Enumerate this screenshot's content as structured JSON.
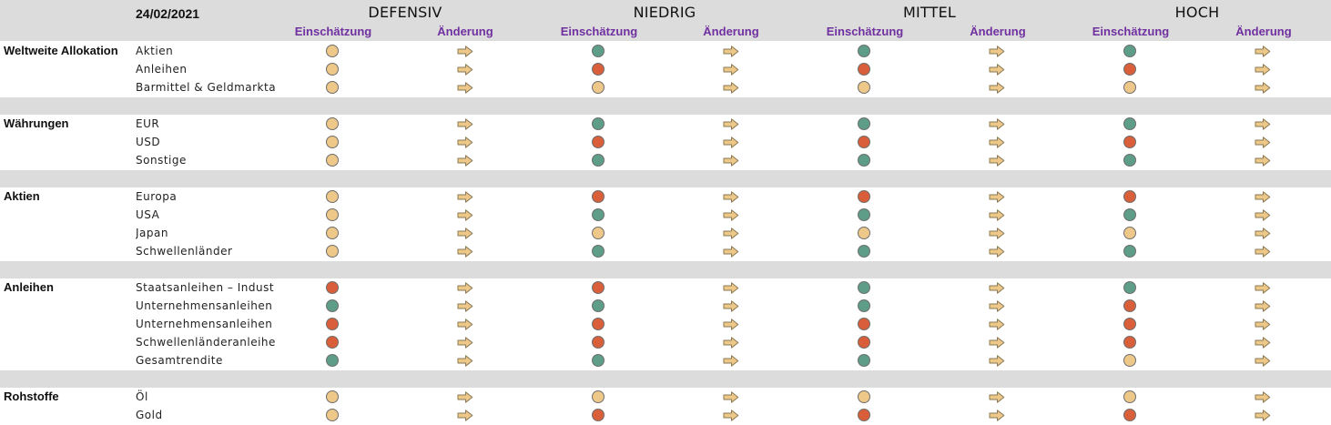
{
  "date": "24/02/2021",
  "profiles": [
    "DEFENSIV",
    "NIEDRIG",
    "MITTEL",
    "HOCH"
  ],
  "subheaders": {
    "rating": "Einschätzung",
    "change": "Änderung"
  },
  "colors": {
    "green": "#5e9e88",
    "red": "#d95f3a",
    "yellow": "#eec889",
    "arrow": "#eec889",
    "band": "#dcdcdc",
    "subheader": "#7030a0"
  },
  "change_icon": "arrow-right-icon",
  "groups": [
    {
      "category": "Weltweite Allokation",
      "rows": [
        {
          "asset": "Aktien",
          "ratings": [
            "yellow",
            "green",
            "green",
            "green"
          ]
        },
        {
          "asset": "Anleihen",
          "ratings": [
            "yellow",
            "red",
            "red",
            "red"
          ]
        },
        {
          "asset": "Barmittel & Geldmarkta",
          "ratings": [
            "yellow",
            "yellow",
            "yellow",
            "yellow"
          ]
        }
      ]
    },
    {
      "category": "Währungen",
      "rows": [
        {
          "asset": "EUR",
          "ratings": [
            "yellow",
            "green",
            "green",
            "green"
          ]
        },
        {
          "asset": "USD",
          "ratings": [
            "yellow",
            "red",
            "red",
            "red"
          ]
        },
        {
          "asset": "Sonstige",
          "ratings": [
            "yellow",
            "green",
            "green",
            "green"
          ]
        }
      ]
    },
    {
      "category": "Aktien",
      "rows": [
        {
          "asset": "Europa",
          "ratings": [
            "yellow",
            "red",
            "red",
            "red"
          ]
        },
        {
          "asset": "USA",
          "ratings": [
            "yellow",
            "green",
            "green",
            "green"
          ]
        },
        {
          "asset": "Japan",
          "ratings": [
            "yellow",
            "yellow",
            "yellow",
            "yellow"
          ]
        },
        {
          "asset": "Schwellenländer",
          "ratings": [
            "yellow",
            "green",
            "green",
            "green"
          ]
        }
      ]
    },
    {
      "category": "Anleihen",
      "rows": [
        {
          "asset": "Staatsanleihen – Indust",
          "ratings": [
            "red",
            "red",
            "green",
            "green"
          ]
        },
        {
          "asset": "Unternehmensanleihen",
          "ratings": [
            "green",
            "green",
            "green",
            "red"
          ]
        },
        {
          "asset": "Unternehmensanleihen",
          "ratings": [
            "red",
            "red",
            "red",
            "red"
          ]
        },
        {
          "asset": "Schwellenländeranleihe",
          "ratings": [
            "red",
            "red",
            "red",
            "red"
          ]
        },
        {
          "asset": "Gesamtrendite",
          "ratings": [
            "green",
            "green",
            "green",
            "yellow"
          ]
        }
      ]
    },
    {
      "category": "Rohstoffe",
      "rows": [
        {
          "asset": "Öl",
          "ratings": [
            "yellow",
            "yellow",
            "yellow",
            "yellow"
          ]
        },
        {
          "asset": "Gold",
          "ratings": [
            "yellow",
            "red",
            "red",
            "red"
          ]
        }
      ]
    }
  ]
}
